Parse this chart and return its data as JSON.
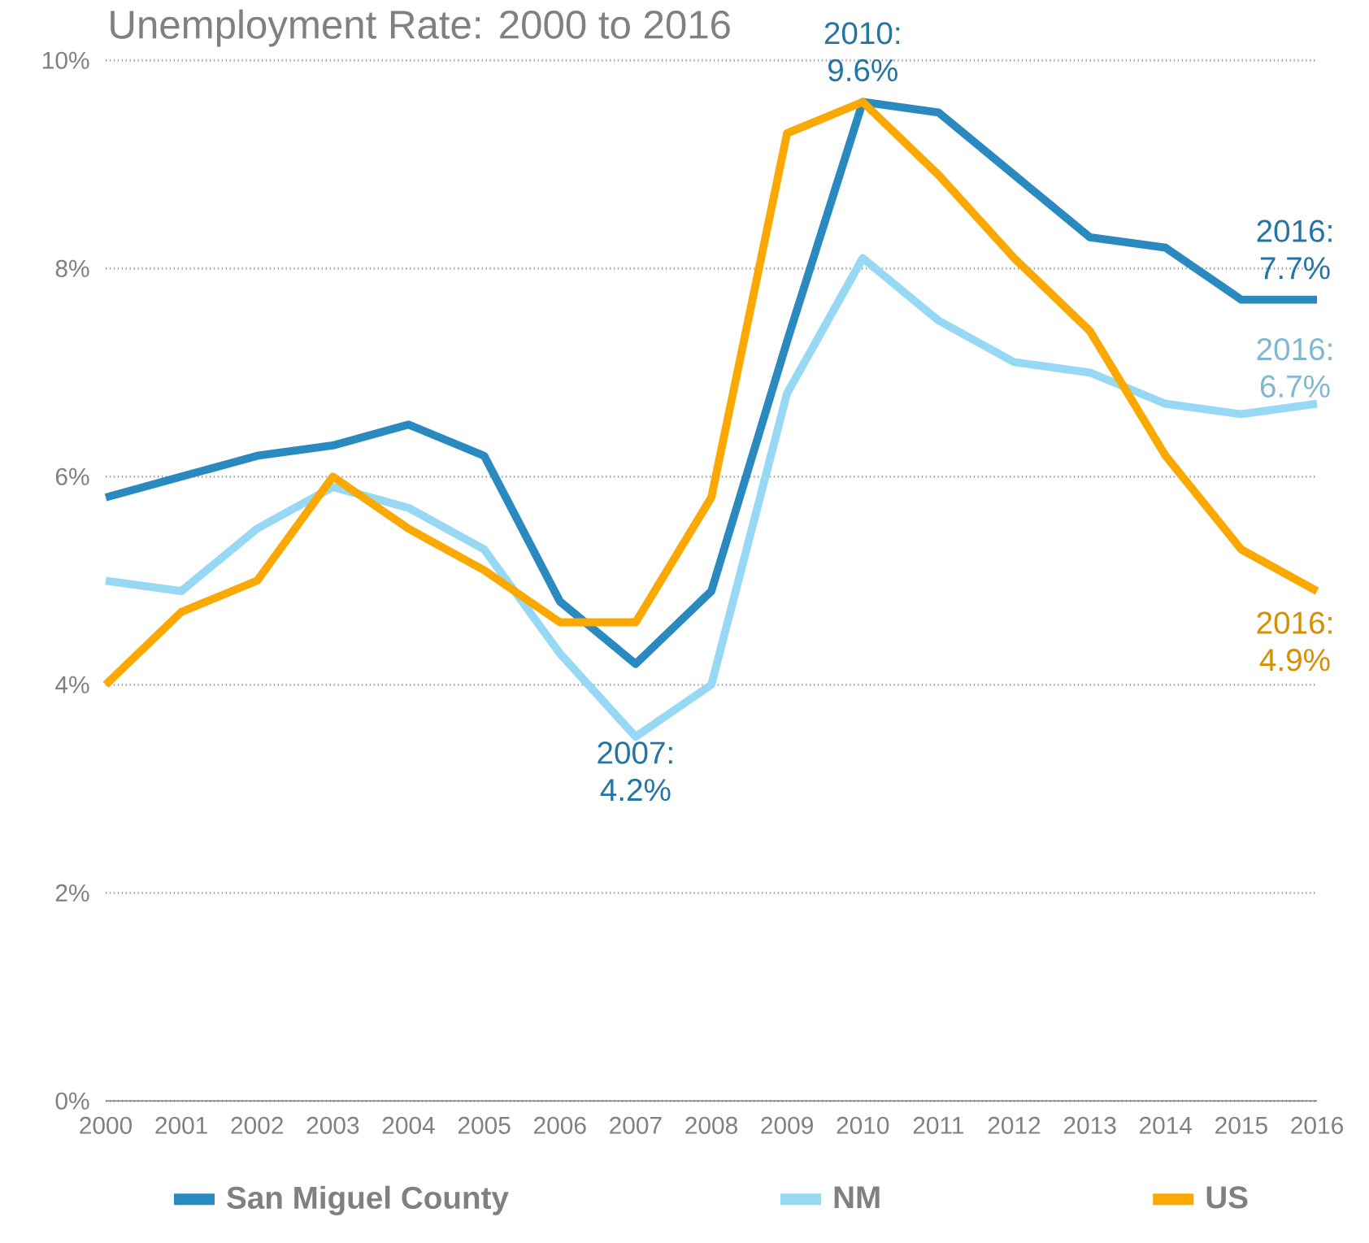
{
  "chart_data": {
    "type": "line",
    "title": "Unemployment Rate: 2000 to 2016",
    "categories": [
      "2000",
      "2001",
      "2002",
      "2003",
      "2004",
      "2005",
      "2006",
      "2007",
      "2008",
      "2009",
      "2010",
      "2011",
      "2012",
      "2013",
      "2014",
      "2015",
      "2016"
    ],
    "series": [
      {
        "name": "San Miguel County",
        "color": "#2a8ac0",
        "values": [
          5.8,
          6.0,
          6.2,
          6.3,
          6.5,
          6.2,
          4.8,
          4.2,
          4.9,
          7.3,
          9.6,
          9.5,
          8.9,
          8.3,
          8.2,
          7.7,
          7.7
        ]
      },
      {
        "name": "NM",
        "color": "#97d8f5",
        "values": [
          5.0,
          4.9,
          5.5,
          5.9,
          5.7,
          5.3,
          4.3,
          3.5,
          4.0,
          6.8,
          8.1,
          7.5,
          7.1,
          7.0,
          6.7,
          6.6,
          6.7
        ]
      },
      {
        "name": "US",
        "color": "#fba800",
        "values": [
          4.0,
          4.7,
          5.0,
          6.0,
          5.5,
          5.1,
          4.6,
          4.6,
          5.8,
          9.3,
          9.6,
          8.9,
          8.1,
          7.4,
          6.2,
          5.3,
          4.9
        ]
      }
    ],
    "ylim": [
      0,
      10
    ],
    "yticks": [
      {
        "value": 0,
        "label": "0%"
      },
      {
        "value": 2,
        "label": "2%"
      },
      {
        "value": 4,
        "label": "4%"
      },
      {
        "value": 6,
        "label": "6%"
      },
      {
        "value": 8,
        "label": "8%"
      },
      {
        "value": 10,
        "label": "10%"
      }
    ],
    "grid": "y",
    "legend": "bottom",
    "marker": "none",
    "line_style": "solid",
    "annotations": [
      {
        "text": "2010: 9.6%",
        "x": "2010",
        "y": 9.6
      },
      {
        "text": "2007: 4.2%",
        "x": "2007",
        "y": 4.2
      },
      {
        "text": "2016: 7.7%",
        "x": "2016",
        "y": 7.7
      },
      {
        "text": "2016: 6.7%",
        "x": "2016",
        "y": 6.7
      },
      {
        "text": "2016: 4.9%",
        "x": "2016",
        "y": 4.9
      }
    ]
  }
}
